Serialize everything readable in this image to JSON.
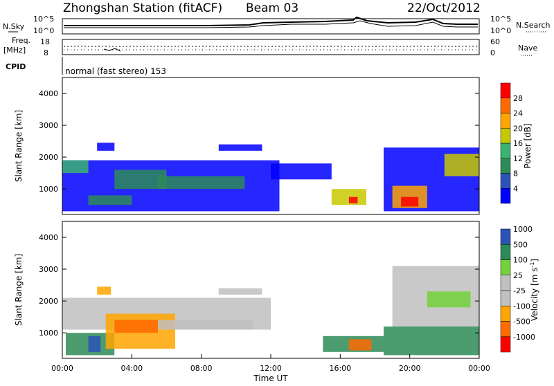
{
  "header": {
    "station": "Zhongshan Station (fitACF)",
    "beam": "Beam 03",
    "date": "22/Oct/2012"
  },
  "status_panels": {
    "nsky_label": "N.Sky",
    "nsearch_label": "N.Search",
    "nsky_ticks": [
      "10^5",
      "10^0"
    ],
    "nsearch_ticks": [
      "10^5",
      "10^0"
    ],
    "freq_label_1": "Freq.",
    "freq_label_2": "[MHz]",
    "freq_ticks": [
      "18",
      "8"
    ],
    "nave_label": "Nave",
    "nave_ticks": [
      "60",
      "0"
    ],
    "cpid_label": "CPID",
    "cpid_text": "normal (fast stereo) 153"
  },
  "colors": {
    "power": [
      "#0000ff",
      "#2b53b6",
      "#2e8b57",
      "#3cb371",
      "#c8c800",
      "#ffa500",
      "#ff6a00",
      "#ff0000"
    ],
    "velocity": [
      "#ff0000",
      "#ff6a00",
      "#ffa500",
      "#c0c0c0",
      "#c0c0c0",
      "#74d13c",
      "#2e8b57",
      "#2b53b6"
    ]
  },
  "chart_data": [
    {
      "type": "heatmap",
      "name": "power",
      "xlabel": "",
      "ylabel": "Slant Range [km]",
      "y_ticks": [
        1000,
        2000,
        3000,
        4000
      ],
      "ylim": [
        200,
        4500
      ],
      "colorbar_label": "Power [dB]",
      "colorbar_ticks": [
        "4",
        "8",
        "12",
        "16",
        "20",
        "24",
        "28"
      ],
      "regions": [
        {
          "x0": 0.0,
          "x1": 12.5,
          "y0": 300,
          "y1": 1900,
          "level": 1
        },
        {
          "x0": 0.0,
          "x1": 1.5,
          "y0": 1500,
          "y1": 1900,
          "level": 4
        },
        {
          "x0": 2.0,
          "x1": 3.0,
          "y0": 2200,
          "y1": 2450,
          "level": 1
        },
        {
          "x0": 1.5,
          "x1": 4.0,
          "y0": 500,
          "y1": 800,
          "level": 3
        },
        {
          "x0": 3.0,
          "x1": 6.0,
          "y0": 1000,
          "y1": 1600,
          "level": 3
        },
        {
          "x0": 5.5,
          "x1": 10.5,
          "y0": 1000,
          "y1": 1400,
          "level": 3
        },
        {
          "x0": 9.0,
          "x1": 11.5,
          "y0": 2200,
          "y1": 2400,
          "level": 1
        },
        {
          "x0": 12.0,
          "x1": 15.5,
          "y0": 1300,
          "y1": 1800,
          "level": 1
        },
        {
          "x0": 15.5,
          "x1": 17.5,
          "y0": 500,
          "y1": 1000,
          "level": 5
        },
        {
          "x0": 16.5,
          "x1": 17.0,
          "y0": 550,
          "y1": 750,
          "level": 8
        },
        {
          "x0": 18.5,
          "x1": 24.0,
          "y0": 300,
          "y1": 2300,
          "level": 1
        },
        {
          "x0": 19.0,
          "x1": 21.0,
          "y0": 400,
          "y1": 1100,
          "level": 6
        },
        {
          "x0": 19.5,
          "x1": 20.5,
          "y0": 450,
          "y1": 750,
          "level": 8
        },
        {
          "x0": 22.0,
          "x1": 24.0,
          "y0": 1400,
          "y1": 2100,
          "level": 5
        }
      ]
    },
    {
      "type": "heatmap",
      "name": "velocity",
      "xlabel": "Time UT",
      "ylabel": "Slant Range [km]",
      "x_ticks": [
        "00:00",
        "04:00",
        "08:00",
        "12:00",
        "16:00",
        "20:00",
        "00:00"
      ],
      "y_ticks": [
        1000,
        2000,
        3000,
        4000
      ],
      "ylim": [
        200,
        4500
      ],
      "colorbar_label": "Velocity [m s^-1]",
      "colorbar_ticks": [
        "-1000",
        "-500",
        "-100",
        "-25",
        "25",
        "100",
        "500",
        "1000"
      ],
      "regions": [
        {
          "x0": 0.0,
          "x1": 12.0,
          "y0": 1100,
          "y1": 2100,
          "level": 4
        },
        {
          "x0": 0.2,
          "x1": 3.0,
          "y0": 300,
          "y1": 1000,
          "level": 7
        },
        {
          "x0": 1.5,
          "x1": 2.2,
          "y0": 400,
          "y1": 900,
          "level": 8
        },
        {
          "x0": 2.0,
          "x1": 2.8,
          "y0": 2200,
          "y1": 2450,
          "level": 3
        },
        {
          "x0": 2.5,
          "x1": 6.5,
          "y0": 500,
          "y1": 1600,
          "level": 3
        },
        {
          "x0": 3.0,
          "x1": 5.5,
          "y0": 1000,
          "y1": 1400,
          "level": 2
        },
        {
          "x0": 5.5,
          "x1": 11.0,
          "y0": 1100,
          "y1": 1400,
          "level": 4
        },
        {
          "x0": 9.0,
          "x1": 11.5,
          "y0": 2200,
          "y1": 2400,
          "level": 4
        },
        {
          "x0": 15.0,
          "x1": 18.5,
          "y0": 400,
          "y1": 900,
          "level": 7
        },
        {
          "x0": 16.5,
          "x1": 17.8,
          "y0": 450,
          "y1": 800,
          "level": 2
        },
        {
          "x0": 18.5,
          "x1": 24.0,
          "y0": 300,
          "y1": 1200,
          "level": 7
        },
        {
          "x0": 19.0,
          "x1": 24.0,
          "y0": 1200,
          "y1": 3100,
          "level": 4
        },
        {
          "x0": 21.0,
          "x1": 23.5,
          "y0": 1800,
          "y1": 2300,
          "level": 6
        }
      ]
    }
  ]
}
